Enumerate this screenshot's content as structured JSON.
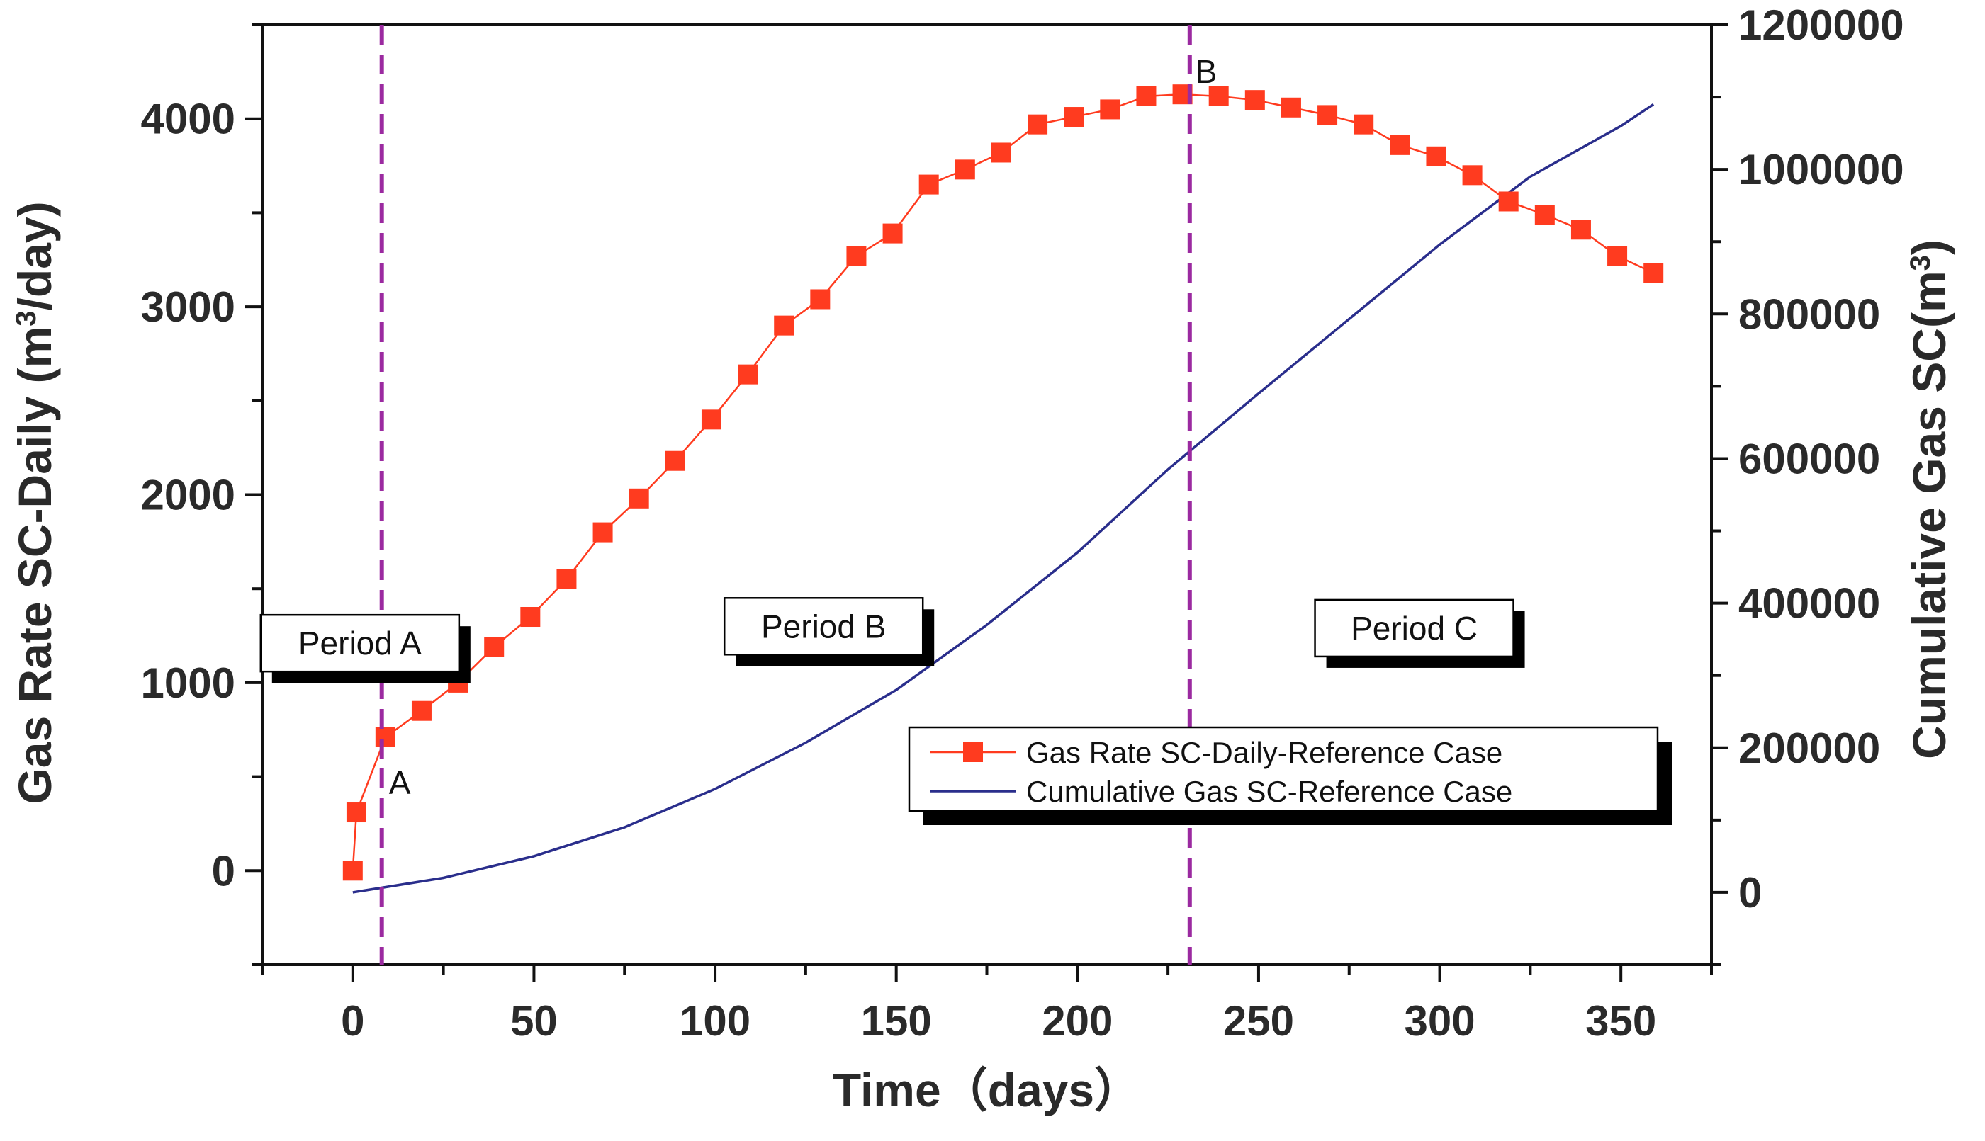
{
  "chart_data": {
    "type": "line",
    "x_axis": {
      "label": "Time（days）",
      "range": [
        -25,
        375
      ],
      "ticks": [
        0,
        50,
        100,
        150,
        200,
        250,
        300,
        350
      ],
      "tick_labels": [
        "0",
        "50",
        "100",
        "150",
        "200",
        "250",
        "300",
        "350"
      ]
    },
    "y_axis_left": {
      "label": "Gas Rate SC-Daily (m³/day)",
      "label_main": "Gas Rate SC-Daily (m",
      "label_sup": "3",
      "label_end": "/day)",
      "range": [
        -500,
        4500
      ],
      "ticks": [
        0,
        1000,
        2000,
        3000,
        4000
      ],
      "tick_labels": [
        "0",
        "1000",
        "2000",
        "3000",
        "4000"
      ]
    },
    "y_axis_right": {
      "label": "Cumulative Gas SC(m³)",
      "label_main": "Cumulative Gas SC(m",
      "label_sup": "3",
      "label_end": ")",
      "range": [
        -100000,
        1200000
      ],
      "ticks": [
        0,
        200000,
        400000,
        600000,
        800000,
        1000000,
        1200000
      ],
      "tick_labels": [
        "0",
        "200000",
        "400000",
        "600000",
        "800000",
        "1000000",
        "1200000"
      ]
    },
    "series": [
      {
        "name": "Gas Rate SC-Daily-Reference Case",
        "axis": "left",
        "color": "#ff3b1f",
        "marker": "square",
        "x": [
          0,
          1,
          9,
          19,
          29,
          39,
          49,
          59,
          69,
          79,
          89,
          99,
          109,
          119,
          129,
          139,
          149,
          159,
          169,
          179,
          189,
          199,
          209,
          219,
          229,
          239,
          249,
          259,
          269,
          279,
          289,
          299,
          309,
          319,
          329,
          339,
          349,
          359
        ],
        "y": [
          0,
          310,
          710,
          850,
          1000,
          1190,
          1350,
          1550,
          1800,
          1980,
          2180,
          2400,
          2640,
          2900,
          3040,
          3270,
          3390,
          3650,
          3730,
          3820,
          3970,
          4010,
          4050,
          4120,
          4130,
          4120,
          4100,
          4060,
          4020,
          3970,
          3860,
          3800,
          3700,
          3560,
          3490,
          3410,
          3270,
          3180
        ]
      },
      {
        "name": "Cumulative Gas SC-Reference Case",
        "axis": "right",
        "color": "#2a2e8c",
        "marker": "none",
        "x": [
          0,
          25,
          50,
          75,
          100,
          125,
          150,
          175,
          200,
          225,
          250,
          275,
          300,
          325,
          350,
          359
        ],
        "y": [
          0,
          20000,
          50000,
          90000,
          143000,
          207000,
          280000,
          370000,
          470000,
          585000,
          690000,
          793000,
          896000,
          990000,
          1060000,
          1090000
        ]
      }
    ],
    "vertical_markers": [
      {
        "x": 8,
        "label": "A",
        "color": "#9b2aa0",
        "style": "dashed"
      },
      {
        "x": 231,
        "label": "B",
        "color": "#9b2aa0",
        "style": "dashed"
      }
    ],
    "annotations": [
      {
        "text": "Period A",
        "x": 0,
        "y": 1210
      },
      {
        "text": "Period B",
        "x": 128,
        "y": 1300
      },
      {
        "text": "Period C",
        "x": 291,
        "y": 1290
      }
    ],
    "legend": {
      "position": "bottom-right"
    }
  }
}
